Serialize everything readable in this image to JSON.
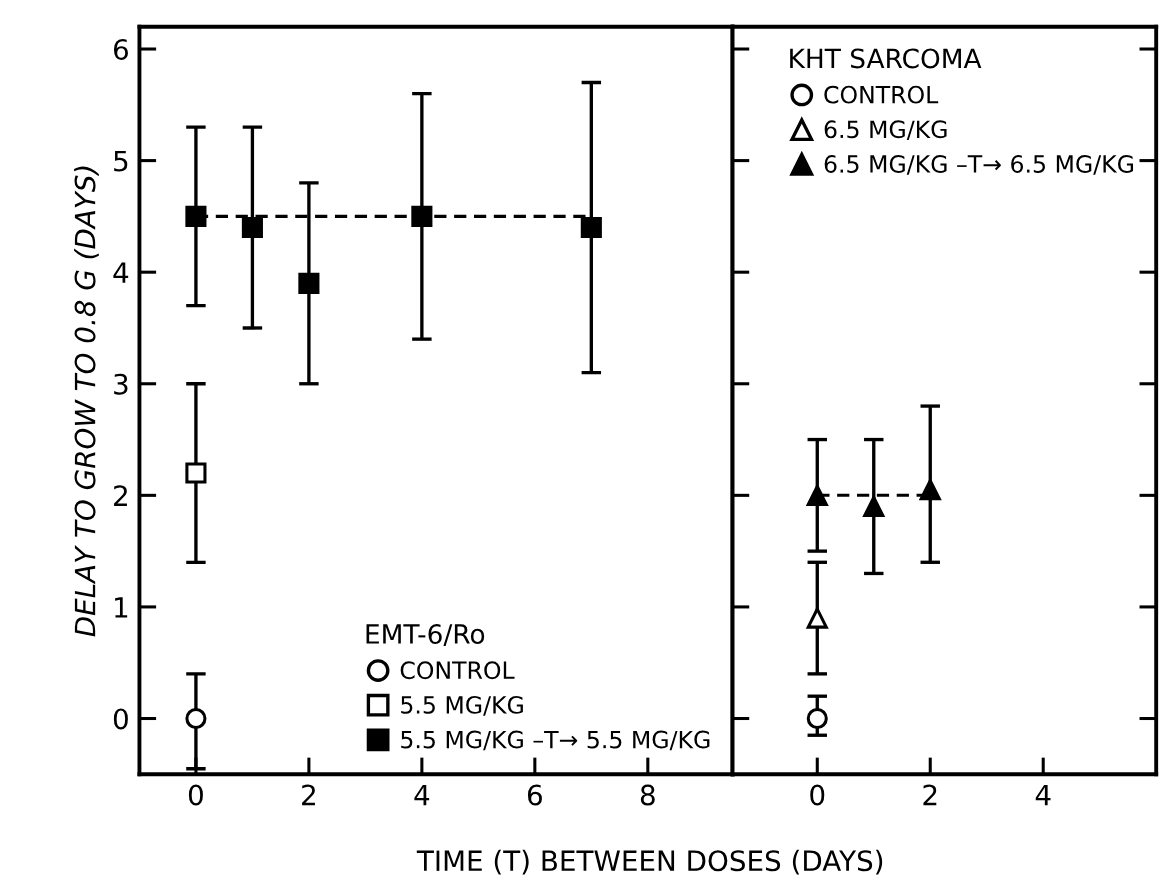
{
  "chart_data": [
    {
      "type": "scatter",
      "ylabel": "DELAY TO GROW TO 0.8 G (DAYS)",
      "xlabel": "TIME (T) BETWEEN DOSES (DAYS)",
      "legend_title": "EMT-6/Ro",
      "legend": "bottom right",
      "xlim": [
        -1,
        9.5
      ],
      "xticks": [
        0,
        2,
        4,
        6,
        8
      ],
      "ylim": [
        -0.5,
        6.2
      ],
      "yticks": [
        0,
        1,
        2,
        3,
        4,
        5,
        6
      ],
      "grid": false,
      "series": [
        {
          "name": "CONTROL",
          "color": "#ffffff",
          "marker": "circle",
          "x": [
            0
          ],
          "values": [
            0
          ],
          "errors": [
            [
              -0.45,
              0.4
            ]
          ]
        },
        {
          "name": "5.5 MG/KG",
          "color": "#ffffff",
          "marker": "square",
          "x": [
            0
          ],
          "values": [
            2.2
          ],
          "errors": [
            [
              1.4,
              3.0
            ]
          ]
        },
        {
          "name": "5.5 MG/KG –T→ 5.5 MG/KG",
          "color": "#000000",
          "marker": "square",
          "x": [
            0,
            1,
            2,
            4,
            7
          ],
          "values": [
            4.5,
            4.4,
            3.9,
            4.5,
            4.4
          ],
          "errors": [
            [
              3.7,
              5.3
            ],
            [
              3.5,
              5.3
            ],
            [
              3.0,
              4.8
            ],
            [
              3.4,
              5.6
            ],
            [
              3.1,
              5.7
            ]
          ]
        },
        {
          "type": "line",
          "line_style": "dashed",
          "marker": "none",
          "color": "#000000",
          "x": [
            0,
            7
          ],
          "values": [
            4.5,
            4.5
          ]
        }
      ]
    },
    {
      "type": "scatter",
      "legend_title": "KHT SARCOMA",
      "legend": "top right",
      "tick_labels": "x",
      "xlim": [
        -1.5,
        6
      ],
      "xticks": [
        0,
        2,
        4
      ],
      "ylim": [
        -0.5,
        6.2
      ],
      "grid": false,
      "series": [
        {
          "name": "CONTROL",
          "color": "#ffffff",
          "marker": "circle",
          "x": [
            0
          ],
          "values": [
            0
          ],
          "errors": [
            [
              -0.15,
              0.2
            ]
          ]
        },
        {
          "name": "6.5 MG/KG",
          "color": "#ffffff",
          "marker": "triangle",
          "x": [
            0
          ],
          "values": [
            0.9
          ],
          "errors": [
            [
              0.4,
              1.4
            ]
          ]
        },
        {
          "name": "6.5 MG/KG –T→ 6.5 MG/KG",
          "color": "#000000",
          "marker": "triangle",
          "x": [
            0,
            1,
            2
          ],
          "values": [
            2.0,
            1.9,
            2.05
          ],
          "errors": [
            [
              1.5,
              2.5
            ],
            [
              1.3,
              2.5
            ],
            [
              1.4,
              2.8
            ]
          ]
        },
        {
          "type": "line",
          "line_style": "dashed",
          "marker": "none",
          "color": "#000000",
          "x": [
            0,
            2
          ],
          "values": [
            2.0,
            2.0
          ]
        }
      ]
    }
  ]
}
